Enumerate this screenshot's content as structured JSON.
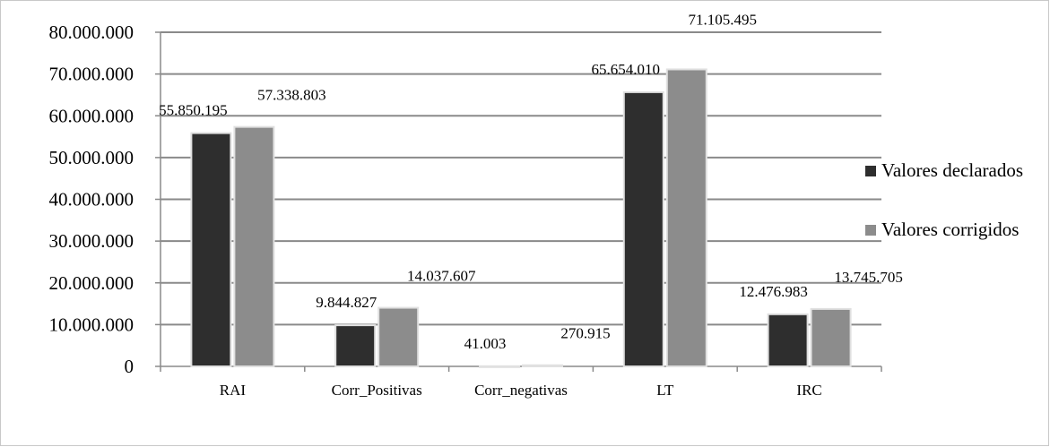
{
  "chart_data": {
    "type": "bar",
    "categories": [
      "RAI",
      "Corr_Positivas",
      "Corr_negativas",
      "LT",
      "IRC"
    ],
    "series": [
      {
        "name": "Valores declarados",
        "values": [
          55850195,
          9844827,
          41003,
          65654010,
          12476983
        ],
        "labels": [
          "55.850.195",
          "9.844.827",
          "41.003",
          "65.654.010",
          "12.476.983"
        ],
        "color": "#2e2e2e"
      },
      {
        "name": "Valores corrigidos",
        "values": [
          57338803,
          14037607,
          270915,
          71105495,
          13745705
        ],
        "labels": [
          "57.338.803",
          "14.037.607",
          "270.915",
          "71.105.495",
          "13.745.705"
        ],
        "color": "#8c8c8c"
      }
    ],
    "ylim": [
      0,
      80000000
    ],
    "yticks": [
      0,
      10000000,
      20000000,
      30000000,
      40000000,
      50000000,
      60000000,
      70000000,
      80000000
    ],
    "ytick_labels": [
      "0",
      "10.000.000",
      "20.000.000",
      "30.000.000",
      "40.000.000",
      "50.000.000",
      "60.000.000",
      "70.000.000",
      "80.000.000"
    ],
    "grid": true,
    "legend_position": "right",
    "title": "",
    "xlabel": "",
    "ylabel": ""
  }
}
